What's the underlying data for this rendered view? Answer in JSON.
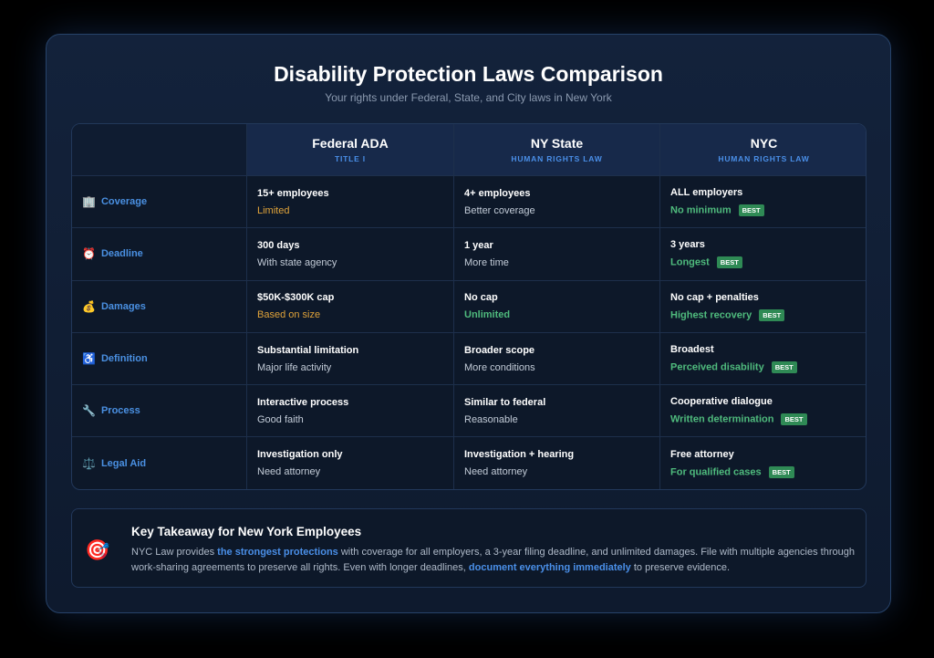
{
  "title": "Disability Protection Laws Comparison",
  "subtitle": "Your rights under Federal, State, and City laws in New York",
  "columns": [
    {
      "name": "Federal ADA",
      "sub": "TITLE I"
    },
    {
      "name": "NY State",
      "sub": "HUMAN RIGHTS LAW"
    },
    {
      "name": "NYC",
      "sub": "HUMAN RIGHTS LAW"
    }
  ],
  "badge": "BEST",
  "rows": [
    {
      "icon": "🏢",
      "label": "Coverage",
      "cells": [
        {
          "main": "15+ employees",
          "sub": "Limited",
          "tone": "orange"
        },
        {
          "main": "4+ employees",
          "sub": "Better coverage",
          "tone": ""
        },
        {
          "main": "ALL employers",
          "sub": "No minimum",
          "tone": "green"
        }
      ]
    },
    {
      "icon": "⏰",
      "label": "Deadline",
      "cells": [
        {
          "main": "300 days",
          "sub": "With state agency",
          "tone": ""
        },
        {
          "main": "1 year",
          "sub": "More time",
          "tone": ""
        },
        {
          "main": "3 years",
          "sub": "Longest",
          "tone": "green"
        }
      ]
    },
    {
      "icon": "💰",
      "label": "Damages",
      "cells": [
        {
          "main": "$50K-$300K cap",
          "sub": "Based on size",
          "tone": "orange"
        },
        {
          "main": "No cap",
          "sub": "Unlimited",
          "tone": "green"
        },
        {
          "main": "No cap + penalties",
          "sub": "Highest recovery",
          "tone": "green"
        }
      ]
    },
    {
      "icon": "♿",
      "label": "Definition",
      "cells": [
        {
          "main": "Substantial limitation",
          "sub": "Major life activity",
          "tone": ""
        },
        {
          "main": "Broader scope",
          "sub": "More conditions",
          "tone": ""
        },
        {
          "main": "Broadest",
          "sub": "Perceived disability",
          "tone": "green"
        }
      ]
    },
    {
      "icon": "🔧",
      "label": "Process",
      "cells": [
        {
          "main": "Interactive process",
          "sub": "Good faith",
          "tone": ""
        },
        {
          "main": "Similar to federal",
          "sub": "Reasonable",
          "tone": ""
        },
        {
          "main": "Cooperative dialogue",
          "sub": "Written determination",
          "tone": "green"
        }
      ]
    },
    {
      "icon": "⚖️",
      "label": "Legal Aid",
      "cells": [
        {
          "main": "Investigation only",
          "sub": "Need attorney",
          "tone": ""
        },
        {
          "main": "Investigation + hearing",
          "sub": "Need attorney",
          "tone": ""
        },
        {
          "main": "Free attorney",
          "sub": "For qualified cases",
          "tone": "green"
        }
      ]
    }
  ],
  "takeaway": {
    "icon": "🎯",
    "title": "Key Takeaway for New York Employees",
    "t1": "NYC Law provides ",
    "h1": "the strongest protections",
    "t2": " with coverage for all employers, a 3-year filing deadline, and unlimited damages. File with multiple agencies through work-sharing agreements to preserve all rights. Even with longer deadlines, ",
    "h2": "document everything immediately",
    "t3": " to preserve evidence."
  }
}
